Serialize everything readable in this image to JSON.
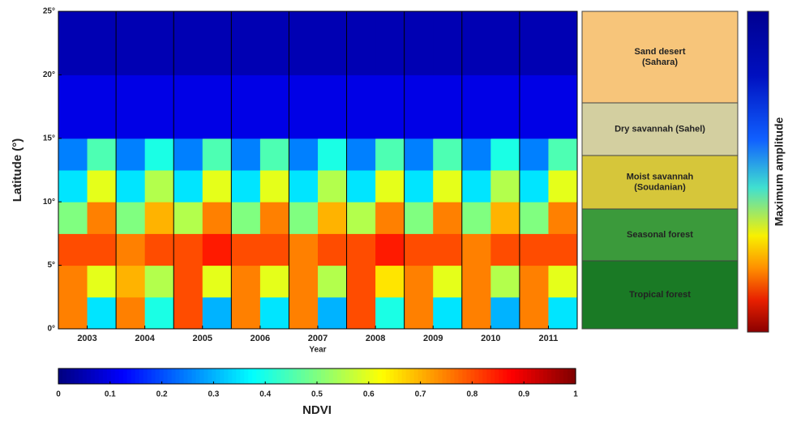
{
  "chart_data": {
    "type": "heatmap",
    "ylabel": "Latitude (°)",
    "xlabel": "Year",
    "xlim": [
      2002.5,
      2011.5
    ],
    "xticks": [
      2003,
      2004,
      2005,
      2006,
      2007,
      2008,
      2009,
      2010,
      2011
    ],
    "x_edges": [
      2002.5,
      2003,
      2003.5,
      2004,
      2004.5,
      2005,
      2005.5,
      2006,
      2006.5,
      2007,
      2007.5,
      2008,
      2008.5,
      2009,
      2009.5,
      2010,
      2010.5,
      2011,
      2011.5
    ],
    "ylim": [
      0,
      25
    ],
    "yticks": [
      {
        "value": 0,
        "label": "0°"
      },
      {
        "value": 5,
        "label": "5°"
      },
      {
        "value": 10,
        "label": "10°"
      },
      {
        "value": 15,
        "label": "15°"
      },
      {
        "value": 20,
        "label": "20°"
      },
      {
        "value": 25,
        "label": "25°"
      }
    ],
    "y_edges": [
      0,
      2.5,
      5,
      7.5,
      10,
      12.5,
      15,
      20,
      25
    ],
    "z": [
      [
        0.75,
        0.35,
        0.75,
        0.4,
        0.8,
        0.3,
        0.75,
        0.35,
        0.75,
        0.3,
        0.8,
        0.4,
        0.75,
        0.35,
        0.75,
        0.3,
        0.75,
        0.35
      ],
      [
        0.75,
        0.6,
        0.7,
        0.55,
        0.8,
        0.6,
        0.75,
        0.6,
        0.75,
        0.55,
        0.8,
        0.65,
        0.75,
        0.6,
        0.75,
        0.55,
        0.75,
        0.6
      ],
      [
        0.8,
        0.8,
        0.75,
        0.8,
        0.8,
        0.85,
        0.8,
        0.8,
        0.75,
        0.8,
        0.8,
        0.85,
        0.8,
        0.8,
        0.75,
        0.8,
        0.8,
        0.8
      ],
      [
        0.5,
        0.75,
        0.5,
        0.7,
        0.55,
        0.75,
        0.5,
        0.75,
        0.5,
        0.7,
        0.55,
        0.75,
        0.5,
        0.75,
        0.5,
        0.7,
        0.5,
        0.75
      ],
      [
        0.35,
        0.6,
        0.35,
        0.55,
        0.35,
        0.6,
        0.35,
        0.6,
        0.35,
        0.55,
        0.35,
        0.6,
        0.35,
        0.6,
        0.35,
        0.55,
        0.35,
        0.6
      ],
      [
        0.25,
        0.45,
        0.25,
        0.4,
        0.25,
        0.45,
        0.25,
        0.45,
        0.25,
        0.4,
        0.25,
        0.45,
        0.25,
        0.45,
        0.25,
        0.4,
        0.25,
        0.45
      ],
      [
        0.1,
        0.1,
        0.1,
        0.1,
        0.1,
        0.1,
        0.1,
        0.1,
        0.1,
        0.1,
        0.1,
        0.1,
        0.1,
        0.1,
        0.1,
        0.1,
        0.1,
        0.1
      ],
      [
        0.05,
        0.05,
        0.05,
        0.05,
        0.05,
        0.05,
        0.05,
        0.05,
        0.05,
        0.05,
        0.05,
        0.05,
        0.05,
        0.05,
        0.05,
        0.05,
        0.05,
        0.05
      ]
    ],
    "colorbar": {
      "label": "NDVI",
      "lim": [
        0,
        1
      ],
      "ticks": [
        0,
        0.1,
        0.2,
        0.3,
        0.4,
        0.5,
        0.6,
        0.7,
        0.8,
        0.9,
        1
      ]
    },
    "zones": [
      {
        "lines": [
          "Sand desert",
          "(Sahara)"
        ],
        "color": "#f7c57a"
      },
      {
        "lines": [
          "Dry savannah (Sahel)"
        ],
        "color": "#d3cfa0"
      },
      {
        "lines": [
          "Moist savannah",
          "(Soudanian)"
        ],
        "color": "#d6c63a"
      },
      {
        "lines": [
          "Seasonal forest"
        ],
        "color": "#3b9a3b"
      },
      {
        "lines": [
          "Tropical forest"
        ],
        "color": "#1a7a25"
      }
    ],
    "amplitude_label": "Maximum amplitude"
  }
}
